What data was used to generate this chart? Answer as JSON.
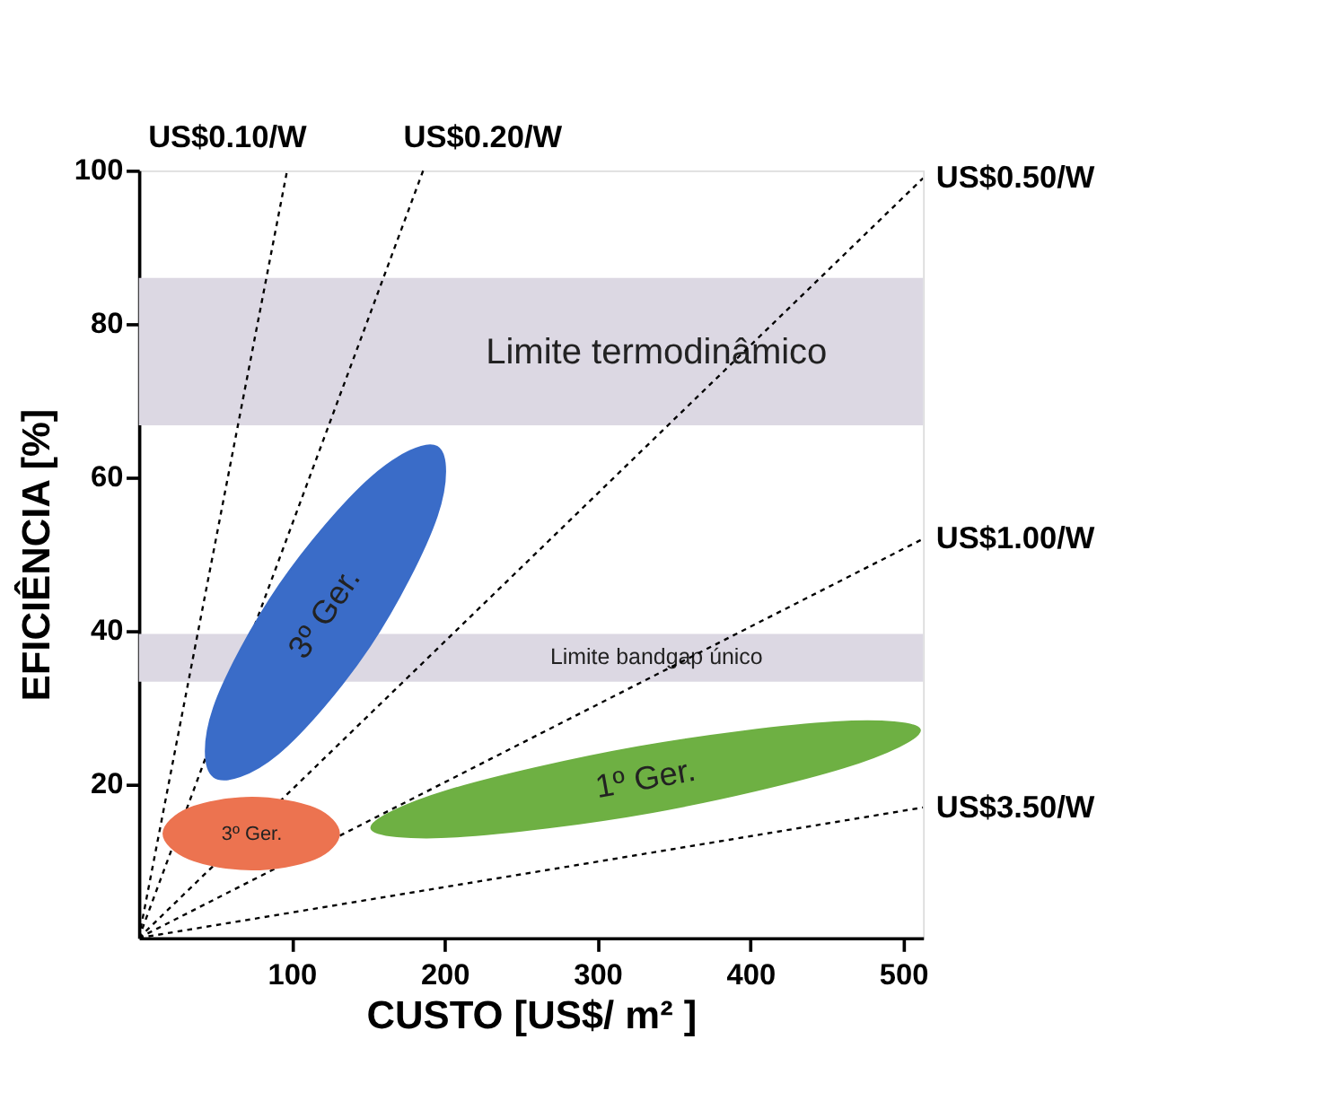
{
  "chart_data": {
    "type": "line",
    "xlabel": "CUSTO [US$/ m² ]",
    "ylabel": "EFICIÊNCIA [%]",
    "xlim": [
      0,
      513
    ],
    "ylim": [
      0,
      100
    ],
    "xticks": [
      100,
      200,
      300,
      400,
      500
    ],
    "yticks": [
      20,
      40,
      60,
      80,
      100
    ],
    "grid": false,
    "line_style": "dashed",
    "bands": [
      {
        "axis": "y",
        "from": 66.8,
        "to": 86,
        "label": "Limite termodinâmico",
        "color": "#dcd8e3"
      },
      {
        "axis": "y",
        "from": 33.4,
        "to": 39.6,
        "label": "Limite bandgap único",
        "color": "#dcd8e3"
      }
    ],
    "series": [
      {
        "name": "US$0.10/W",
        "color": "#000000",
        "x": [
          0,
          97
        ],
        "values": [
          0,
          100
        ]
      },
      {
        "name": "US$0.20/W",
        "color": "#000000",
        "x": [
          0,
          186
        ],
        "values": [
          0,
          100
        ]
      },
      {
        "name": "US$0.50/W",
        "color": "#000000",
        "x": [
          0,
          513
        ],
        "values": [
          0,
          99
        ]
      },
      {
        "name": "US$1.00/W",
        "color": "#000000",
        "x": [
          0,
          513
        ],
        "values": [
          0,
          52
        ]
      },
      {
        "name": "US$3.50/W",
        "color": "#000000",
        "x": [
          0,
          513
        ],
        "values": [
          0,
          17
        ]
      },
      {
        "name": "3º Ger.",
        "type": "area",
        "color": "#3a6cc8",
        "x": [
          195,
          195,
          151,
          91,
          49,
          49,
          92,
          152
        ],
        "values": [
          64,
          55,
          38,
          24,
          21,
          30,
          46,
          60
        ]
      },
      {
        "name": "3º Ger.",
        "type": "area",
        "color": "#ec7350",
        "x": [
          131,
          115,
          74,
          33,
          16,
          33,
          74,
          115
        ],
        "values": [
          13.6,
          16.9,
          18.3,
          16.9,
          13.6,
          10.3,
          8.9,
          10.3
        ]
      },
      {
        "name": "1º Ger.",
        "type": "area",
        "color": "#6eb043",
        "x": [
          511,
          461,
          336,
          208,
          152,
          202,
          327,
          455
        ],
        "values": [
          27.1,
          22.2,
          16.4,
          13.2,
          14.3,
          19.2,
          24.9,
          28.1
        ]
      }
    ]
  }
}
